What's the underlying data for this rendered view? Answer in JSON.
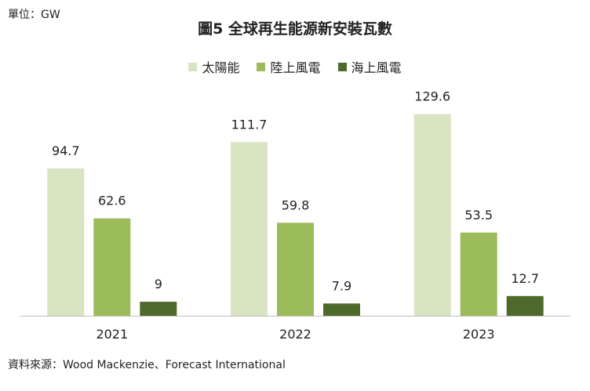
{
  "unit_label": "單位：GW",
  "source_note": "資料來源：Wood Mackenzie、Forecast International",
  "chart_data": {
    "type": "bar",
    "title": "圖5 全球再生能源新安裝瓦數",
    "xlabel": "",
    "ylabel": "",
    "categories": [
      "2021",
      "2022",
      "2023"
    ],
    "series": [
      {
        "name": "太陽能",
        "color": "#d9e4c2",
        "values": [
          94.7,
          111.7,
          129.6
        ],
        "labels": [
          "94.7",
          "111.7",
          "129.6"
        ]
      },
      {
        "name": "陸上風電",
        "color": "#9cbb5a",
        "values": [
          62.6,
          59.8,
          53.5
        ],
        "labels": [
          "62.6",
          "59.8",
          "53.5"
        ]
      },
      {
        "name": "海上風電",
        "color": "#4e6a2a",
        "values": [
          9,
          7.9,
          12.7
        ],
        "labels": [
          "9",
          "7.9",
          "12.7"
        ]
      }
    ],
    "ylim": [
      0,
      150
    ],
    "grid": false,
    "legend_position": "top-center"
  }
}
